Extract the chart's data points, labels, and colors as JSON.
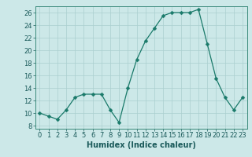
{
  "x": [
    0,
    1,
    2,
    3,
    4,
    5,
    6,
    7,
    8,
    9,
    10,
    11,
    12,
    13,
    14,
    15,
    16,
    17,
    18,
    19,
    20,
    21,
    22,
    23
  ],
  "y": [
    10,
    9.5,
    9,
    10.5,
    12.5,
    13,
    13,
    13,
    10.5,
    8.5,
    14,
    18.5,
    21.5,
    23.5,
    25.5,
    26,
    26,
    26,
    26.5,
    21,
    15.5,
    12.5,
    10.5,
    12.5
  ],
  "line_color": "#1a7a6a",
  "marker_color": "#1a7a6a",
  "bg_color": "#cce8e8",
  "grid_color": "#aacfcf",
  "xlabel": "Humidex (Indice chaleur)",
  "xlim": [
    -0.5,
    23.5
  ],
  "ylim": [
    7.5,
    27
  ],
  "yticks": [
    8,
    10,
    12,
    14,
    16,
    18,
    20,
    22,
    24,
    26
  ],
  "xticks": [
    0,
    1,
    2,
    3,
    4,
    5,
    6,
    7,
    8,
    9,
    10,
    11,
    12,
    13,
    14,
    15,
    16,
    17,
    18,
    19,
    20,
    21,
    22,
    23
  ],
  "tick_label_fontsize": 6.0,
  "xlabel_fontsize": 7.0,
  "marker_size": 2.5,
  "linewidth": 0.9
}
